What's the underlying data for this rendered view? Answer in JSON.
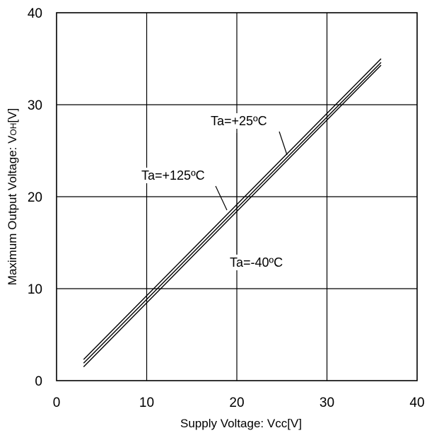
{
  "chart_data": {
    "type": "line",
    "xlabel": "Supply Voltage: Vcc[V]",
    "ylabel": "Maximum Output Voltage: V",
    "ylabel_subscript": "OH",
    "ylabel_suffix": "[V]",
    "xlim": [
      0,
      40
    ],
    "ylim": [
      0,
      40
    ],
    "x_ticks": [
      0,
      10,
      20,
      30,
      40
    ],
    "y_ticks": [
      0,
      10,
      20,
      30,
      40
    ],
    "grid": true,
    "series": [
      {
        "name": "Ta=+25ºC",
        "x": [
          3,
          36
        ],
        "y": [
          2.3,
          35.0
        ]
      },
      {
        "name": "Ta=+125ºC",
        "x": [
          3,
          36
        ],
        "y": [
          1.9,
          34.6
        ]
      },
      {
        "name": "Ta=-40ºC",
        "x": [
          3,
          36
        ],
        "y": [
          1.5,
          34.3
        ]
      }
    ],
    "annotations": [
      {
        "text": "Ta=+25ºC",
        "series": 0
      },
      {
        "text": "Ta=+125ºC",
        "series": 1
      },
      {
        "text": "Ta=-40ºC",
        "series": 2
      }
    ]
  }
}
